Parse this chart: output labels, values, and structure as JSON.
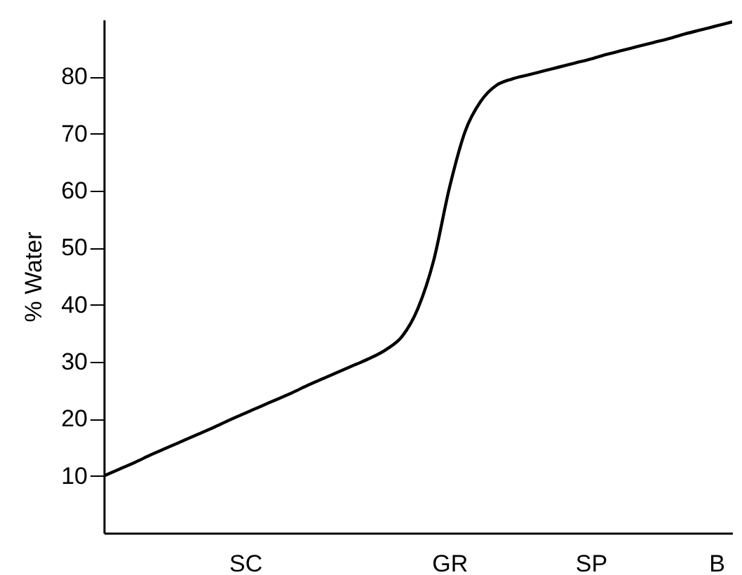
{
  "chart_data": {
    "type": "line",
    "ylabel": "% Water",
    "categories": [
      null,
      null,
      null,
      null,
      null,
      null,
      null,
      null,
      null,
      "SC",
      null,
      null,
      null,
      null,
      null,
      null,
      null,
      null,
      null,
      null,
      null,
      null,
      "GR",
      null,
      null,
      null,
      null,
      null,
      null,
      null,
      null,
      "SP",
      null,
      null,
      null,
      null,
      null,
      null,
      null,
      "B",
      null
    ],
    "series": [
      {
        "color": "#000000",
        "values": [
          10,
          11.2,
          12.4,
          13.7,
          14.9,
          16.1,
          17.3,
          18.5,
          19.8,
          21,
          22.2,
          23.4,
          24.6,
          25.9,
          27.1,
          28.3,
          29.5,
          30.7,
          32.2,
          34.5,
          39.4,
          47.8,
          60.5,
          70.4,
          75.7,
          78.5,
          79.6,
          80.3,
          81,
          81.7,
          82.4,
          83.1,
          83.9,
          84.6,
          85.3,
          86,
          86.7,
          87.5,
          88.2,
          88.9,
          89.6
        ]
      }
    ],
    "ylim": [
      0,
      90
    ],
    "yticks": [
      10,
      20,
      30,
      40,
      50,
      60,
      70,
      80
    ],
    "grid": false,
    "marker": "none",
    "line_style": "solid"
  }
}
